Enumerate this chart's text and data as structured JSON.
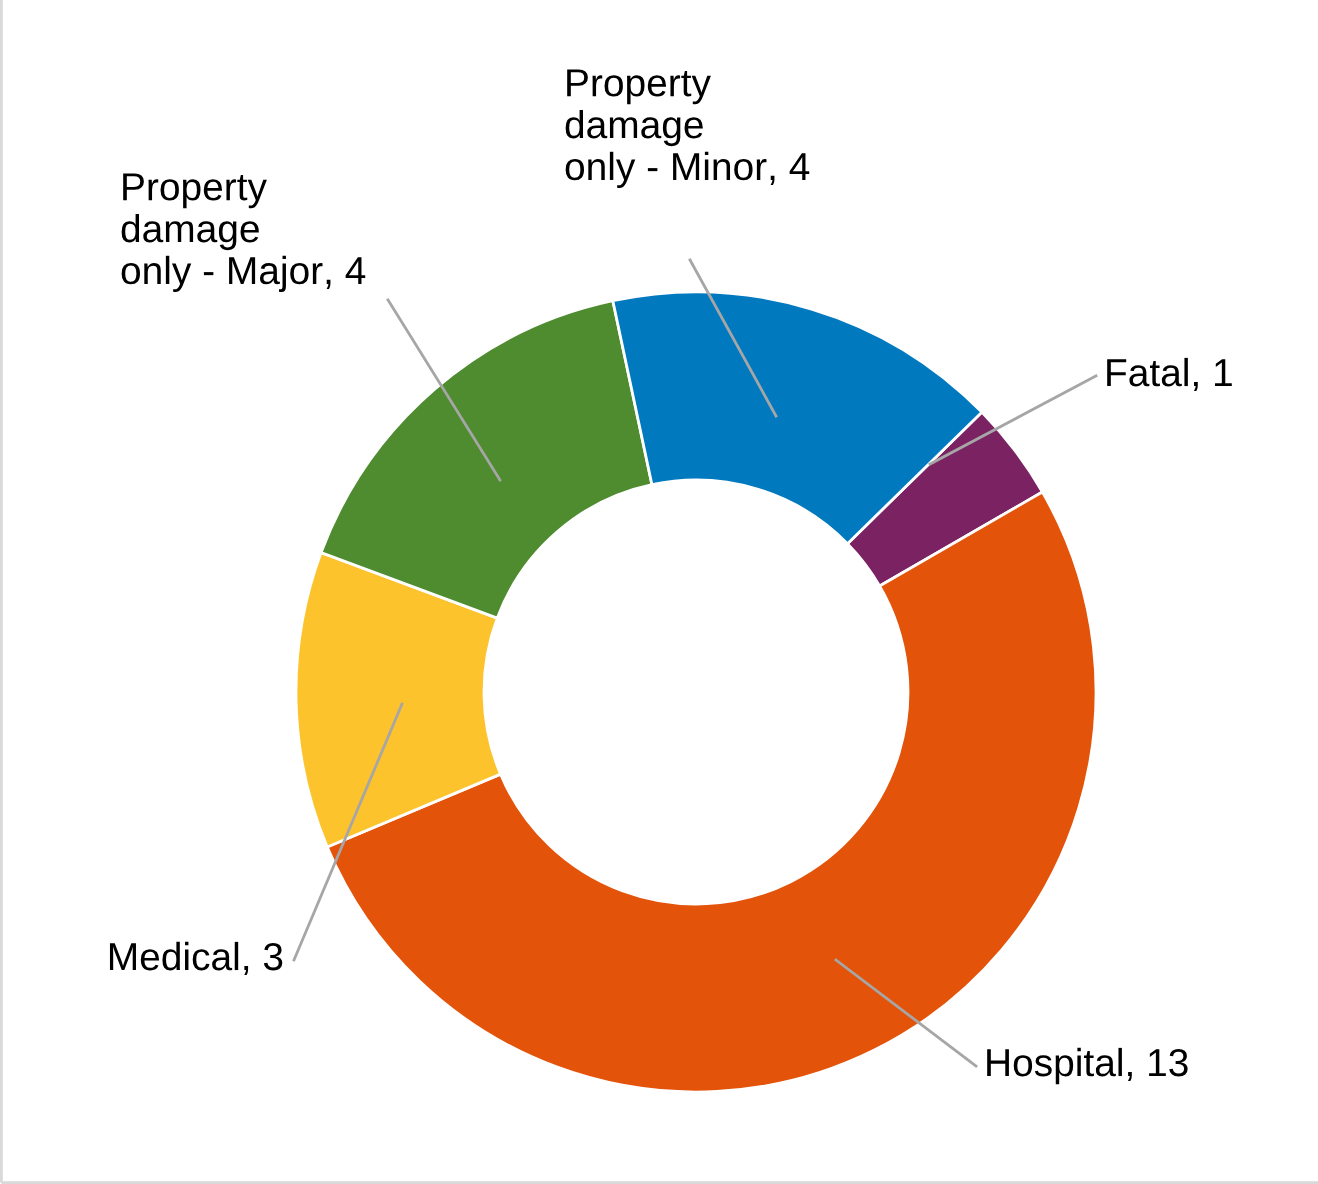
{
  "chart_data": {
    "type": "donut",
    "categories": [
      "Fatal",
      "Hospital",
      "Medical",
      "Property damage only - Major",
      "Property damage only - Minor"
    ],
    "values": [
      1,
      13,
      3,
      4,
      4
    ],
    "colors": [
      "#7b2262",
      "#e3530a",
      "#fdc32c",
      "#4e8c2f",
      "#0079bf"
    ],
    "value_labels": [
      ", 1",
      ", 13",
      ", 3",
      ", 4",
      ", 4"
    ],
    "legend": false
  }
}
